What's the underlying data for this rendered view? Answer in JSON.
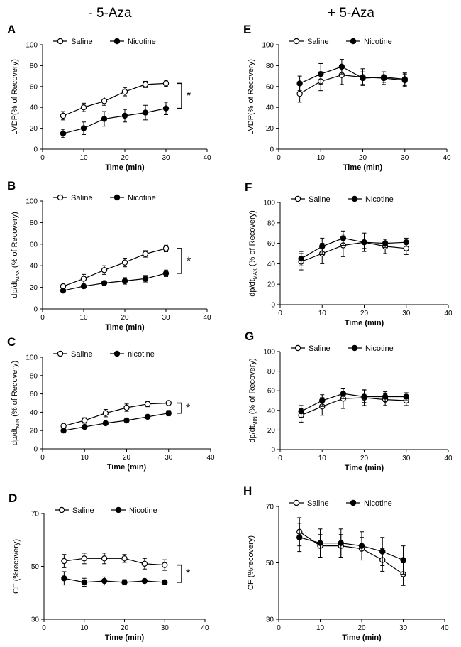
{
  "column_titles": {
    "left": "- 5-Aza",
    "right": "+ 5-Aza"
  },
  "chart_data": [
    {
      "id": "A",
      "type": "line",
      "letter": "A",
      "xlabel": "Time (min)",
      "ylabel": {
        "main": "LVDP(% of Recovery)",
        "sub": "",
        "rest": ""
      },
      "xlim": [
        0,
        40
      ],
      "ylim": [
        0,
        100
      ],
      "xticks": [
        0,
        10,
        20,
        30,
        40
      ],
      "yticks": [
        0,
        20,
        40,
        60,
        80,
        100
      ],
      "x": [
        5,
        10,
        15,
        20,
        25,
        30
      ],
      "series": [
        {
          "name": "Saline",
          "marker": "open",
          "values": [
            32,
            40,
            46,
            55,
            62,
            63
          ],
          "err": [
            4,
            4,
            4,
            4,
            3,
            3
          ]
        },
        {
          "name": "Nicotine",
          "marker": "filled",
          "values": [
            15,
            20,
            29,
            32,
            35,
            39
          ],
          "err": [
            4,
            6,
            7,
            6,
            7,
            6
          ]
        }
      ],
      "significance": "*"
    },
    {
      "id": "B",
      "type": "line",
      "letter": "B",
      "xlabel": "Time (min)",
      "ylabel": {
        "main": "dp/dt",
        "sub": "MAX",
        "rest": " (% of Recovery)"
      },
      "xlim": [
        0,
        40
      ],
      "ylim": [
        0,
        100
      ],
      "xticks": [
        0,
        10,
        20,
        30,
        40
      ],
      "yticks": [
        0,
        20,
        40,
        60,
        80,
        100
      ],
      "x": [
        5,
        10,
        15,
        20,
        25,
        30
      ],
      "series": [
        {
          "name": "Saline",
          "marker": "open",
          "values": [
            21,
            28,
            36,
            43,
            51,
            56
          ],
          "err": [
            3,
            4,
            4,
            4,
            3,
            3
          ]
        },
        {
          "name": "Nicotine",
          "marker": "filled",
          "values": [
            17,
            21,
            24,
            26,
            28,
            33
          ],
          "err": [
            2,
            2,
            2,
            3,
            3,
            3
          ]
        }
      ],
      "significance": "*"
    },
    {
      "id": "C",
      "type": "line",
      "letter": "C",
      "xlabel": "Time (min)",
      "ylabel": {
        "main": "dp/dt",
        "sub": "MIN",
        "rest": " (% of Recovery)"
      },
      "xlim": [
        0,
        40
      ],
      "ylim": [
        0,
        100
      ],
      "xticks": [
        0,
        10,
        20,
        30,
        40
      ],
      "yticks": [
        0,
        20,
        40,
        60,
        80,
        100
      ],
      "x": [
        5,
        10,
        15,
        20,
        25,
        30
      ],
      "series": [
        {
          "name": "Saline",
          "marker": "open",
          "values": [
            25,
            31,
            39,
            45,
            49,
            50
          ],
          "err": [
            2,
            3,
            4,
            4,
            3,
            2
          ]
        },
        {
          "name": "nicotine",
          "marker": "filled",
          "values": [
            20,
            24,
            28,
            31,
            35,
            39
          ],
          "err": [
            1,
            1,
            1,
            2,
            2,
            3
          ]
        }
      ],
      "significance": "*"
    },
    {
      "id": "D",
      "type": "line",
      "letter": "D",
      "xlabel": "Time (min)",
      "ylabel": {
        "main": "CF (%recovery)",
        "sub": "",
        "rest": ""
      },
      "xlim": [
        0,
        40
      ],
      "ylim": [
        30,
        70
      ],
      "xticks": [
        0,
        10,
        20,
        30,
        40
      ],
      "yticks": [
        30,
        50,
        70
      ],
      "x": [
        5,
        10,
        15,
        20,
        25,
        30
      ],
      "series": [
        {
          "name": "Saline",
          "marker": "open",
          "values": [
            52,
            53,
            53,
            53,
            51,
            50.5
          ],
          "err": [
            2.5,
            2,
            2,
            1.5,
            2,
            2
          ]
        },
        {
          "name": "Nicotine",
          "marker": "filled",
          "values": [
            45.5,
            44,
            44.5,
            44,
            44.5,
            44
          ],
          "err": [
            2.5,
            1.5,
            1.5,
            1,
            0.5,
            0.5
          ]
        }
      ],
      "significance": "*"
    },
    {
      "id": "E",
      "type": "line",
      "letter": "E",
      "xlabel": "Time (min)",
      "ylabel": {
        "main": "LVDP(% of Recovery)",
        "sub": "",
        "rest": ""
      },
      "xlim": [
        0,
        40
      ],
      "ylim": [
        0,
        100
      ],
      "xticks": [
        0,
        10,
        20,
        30,
        40
      ],
      "yticks": [
        0,
        20,
        40,
        60,
        80,
        100
      ],
      "x": [
        5,
        10,
        15,
        20,
        25,
        30
      ],
      "series": [
        {
          "name": "Saline",
          "marker": "open",
          "values": [
            53,
            65,
            71,
            69,
            68,
            66
          ],
          "err": [
            8,
            9,
            9,
            8,
            6,
            6
          ]
        },
        {
          "name": "Nicotine",
          "marker": "filled",
          "values": [
            63,
            72,
            79,
            68,
            69,
            67
          ],
          "err": [
            7,
            10,
            7,
            6,
            5,
            6
          ]
        }
      ],
      "significance": ""
    },
    {
      "id": "F",
      "type": "line",
      "letter": "F",
      "xlabel": "Time (min)",
      "ylabel": {
        "main": "dp/dt",
        "sub": "MAX",
        "rest": " (% of Recovery)"
      },
      "xlim": [
        0,
        40
      ],
      "ylim": [
        0,
        100
      ],
      "xticks": [
        0,
        10,
        20,
        30,
        40
      ],
      "yticks": [
        0,
        20,
        40,
        60,
        80,
        100
      ],
      "x": [
        5,
        10,
        15,
        20,
        25,
        30
      ],
      "series": [
        {
          "name": "Saline",
          "marker": "open",
          "values": [
            42,
            50,
            58,
            61,
            57,
            55
          ],
          "err": [
            8,
            10,
            11,
            9,
            7,
            6
          ]
        },
        {
          "name": "Nicotine",
          "marker": "filled",
          "values": [
            45,
            57,
            65,
            61,
            60,
            61
          ],
          "err": [
            7,
            8,
            7,
            6,
            4,
            4
          ]
        }
      ],
      "significance": ""
    },
    {
      "id": "G",
      "type": "line",
      "letter": "G",
      "xlabel": "Time (min)",
      "ylabel": {
        "main": "dp/dt",
        "sub": "MIN",
        "rest": " (% of Recovery)"
      },
      "xlim": [
        0,
        40
      ],
      "ylim": [
        0,
        100
      ],
      "xticks": [
        0,
        10,
        20,
        30,
        40
      ],
      "yticks": [
        0,
        20,
        40,
        60,
        80,
        100
      ],
      "x": [
        5,
        10,
        15,
        20,
        25,
        30
      ],
      "series": [
        {
          "name": "Saline",
          "marker": "open",
          "values": [
            35,
            44,
            52,
            53,
            51,
            50
          ],
          "err": [
            7,
            9,
            10,
            8,
            6,
            5
          ]
        },
        {
          "name": "Nicotine",
          "marker": "filled",
          "values": [
            39,
            50,
            57,
            54,
            54,
            54
          ],
          "err": [
            6,
            6,
            5,
            6,
            5,
            4
          ]
        }
      ],
      "significance": ""
    },
    {
      "id": "H",
      "type": "line",
      "letter": "H",
      "xlabel": "Time (min)",
      "ylabel": {
        "main": "CF (%recovery)",
        "sub": "",
        "rest": ""
      },
      "xlim": [
        0,
        40
      ],
      "ylim": [
        30,
        70
      ],
      "xticks": [
        0,
        10,
        20,
        30,
        40
      ],
      "yticks": [
        30,
        50,
        70
      ],
      "x": [
        5,
        10,
        15,
        20,
        25,
        30
      ],
      "series": [
        {
          "name": "Saline",
          "marker": "open",
          "values": [
            61,
            56,
            56,
            55,
            51,
            46
          ],
          "err": [
            5,
            4,
            4,
            4,
            4,
            4
          ]
        },
        {
          "name": "Nicotine",
          "marker": "filled",
          "values": [
            59,
            57,
            57,
            56,
            54,
            51
          ],
          "err": [
            5,
            5,
            5,
            5,
            5,
            5
          ]
        }
      ],
      "significance": ""
    }
  ]
}
